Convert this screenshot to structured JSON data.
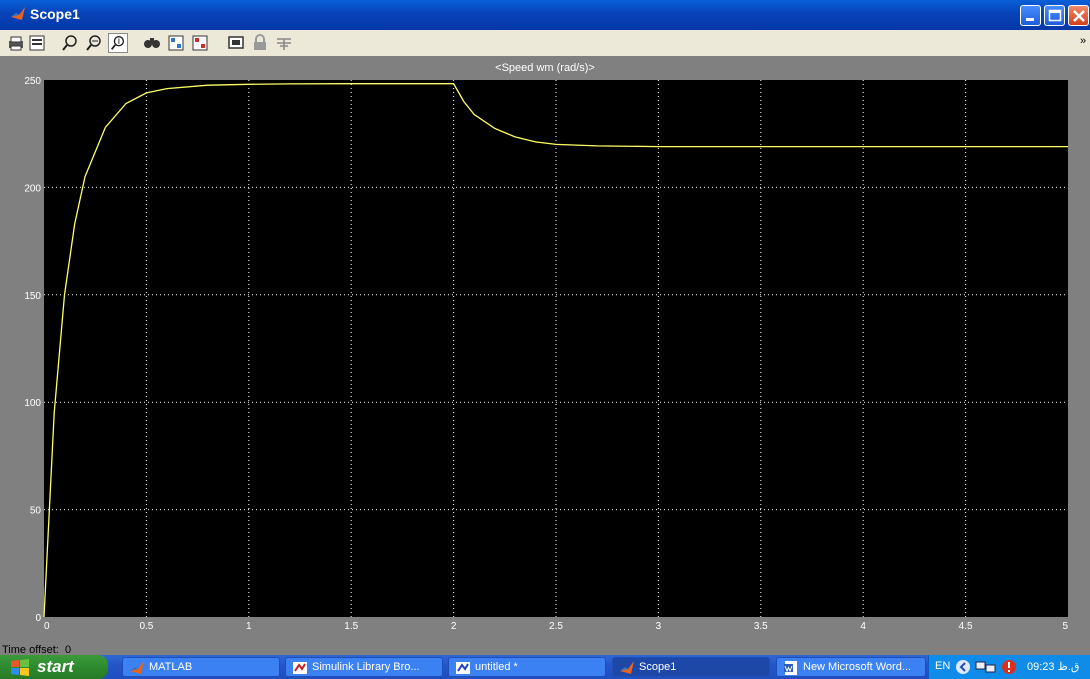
{
  "window": {
    "title": "Scope1"
  },
  "toolbar": {
    "buttons": [
      "print-icon",
      "parameters-icon",
      "zoom-in-icon",
      "zoom-x-icon",
      "zoom-y-icon",
      "autoscale-icon",
      "save-axes-icon",
      "restore-axes-icon",
      "floating-scope-icon",
      "lock-icon",
      "signal-selection-icon"
    ],
    "more_label": "»"
  },
  "plot": {
    "title": "<Speed wm (rad/s)>",
    "time_offset_label": "Time offset:",
    "time_offset_value": "0"
  },
  "chart_data": {
    "type": "line",
    "title": "<Speed wm (rad/s)>",
    "xlabel": "",
    "ylabel": "",
    "xlim": [
      0,
      5
    ],
    "ylim": [
      0,
      250
    ],
    "xticks": [
      "0",
      "0.5",
      "1",
      "1.5",
      "2",
      "2.5",
      "3",
      "3.5",
      "4",
      "4.5",
      "5"
    ],
    "yticks": [
      "0",
      "50",
      "100",
      "150",
      "200",
      "250"
    ],
    "grid": true,
    "background": "#000000",
    "line_color": "#ffff66",
    "series": [
      {
        "x": [
          0,
          0.05,
          0.1,
          0.15,
          0.2,
          0.3,
          0.4,
          0.5,
          0.6,
          0.8,
          1.0,
          1.2,
          1.5,
          1.8,
          2.0,
          2.05,
          2.1,
          2.2,
          2.3,
          2.4,
          2.5,
          2.7,
          3.0,
          3.5,
          4.0,
          4.5,
          5.0
        ],
        "y": [
          0,
          95,
          150,
          183,
          205,
          228,
          239,
          244,
          246,
          247.6,
          248,
          248.2,
          248.3,
          248.3,
          248.3,
          240,
          234,
          227.5,
          223.5,
          221.2,
          220,
          219.3,
          219,
          219,
          219,
          219,
          219
        ]
      }
    ]
  },
  "taskbar": {
    "start_label": "start",
    "tasks": [
      {
        "label": "MATLAB",
        "icon": "matlab-icon"
      },
      {
        "label": "Simulink Library Bro...",
        "icon": "simulink-icon"
      },
      {
        "label": "untitled *",
        "icon": "simulink-model-icon"
      },
      {
        "label": "Scope1",
        "icon": "matlab-icon"
      },
      {
        "label": "New Microsoft Word...",
        "icon": "word-icon"
      }
    ],
    "tray": {
      "language": "EN",
      "clock": "09:23 ق.ظ"
    }
  },
  "colors": {
    "titlebar": "#0842b8",
    "toolbar": "#ece9d8",
    "plot_bg": "#000000",
    "line": "#ffff66",
    "start": "#2e8a2e"
  }
}
